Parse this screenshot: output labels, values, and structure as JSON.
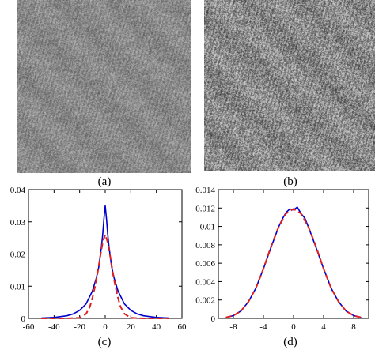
{
  "captions": {
    "a": "(a)",
    "b": "(b)",
    "c": "(c)",
    "d": "(d)"
  },
  "images": {
    "a": {
      "description_icon": "grayscale-noise-texture-fine",
      "base_color": "#8a8a8a"
    },
    "b": {
      "description_icon": "grayscale-noise-texture-coarse",
      "base_color": "#8c8c8c"
    }
  },
  "chart_data": [
    {
      "type": "line",
      "xlim": [
        -60,
        60
      ],
      "ylim": [
        0,
        0.04
      ],
      "xticks": [
        "-60",
        "-40",
        "-20",
        "0",
        "20",
        "40",
        "60"
      ],
      "yticks": [
        "0",
        "0.01",
        "0.02",
        "0.03",
        "0.04"
      ],
      "series": [
        {
          "color": "#0000cc",
          "style": "solid",
          "x": [
            -50,
            -40,
            -30,
            -25,
            -20,
            -15,
            -10,
            -7,
            -5,
            -3,
            -2,
            -1,
            0,
            1,
            2,
            3,
            5,
            7,
            10,
            15,
            20,
            25,
            30,
            40,
            50
          ],
          "y": [
            0.0001,
            0.0003,
            0.0008,
            0.0014,
            0.0025,
            0.0045,
            0.0085,
            0.0125,
            0.016,
            0.022,
            0.026,
            0.031,
            0.035,
            0.031,
            0.026,
            0.022,
            0.016,
            0.0125,
            0.0085,
            0.0045,
            0.0025,
            0.0014,
            0.0008,
            0.0003,
            0.0001
          ]
        },
        {
          "color": "#e02020",
          "style": "dashed",
          "x": [
            -50,
            -30,
            -20,
            -15,
            -12,
            -10,
            -8,
            -6,
            -4,
            -2,
            0,
            2,
            4,
            6,
            8,
            10,
            12,
            15,
            20,
            30,
            50
          ],
          "y": [
            0,
            0,
            0.0002,
            0.0014,
            0.0036,
            0.0063,
            0.0099,
            0.014,
            0.019,
            0.0236,
            0.026,
            0.0236,
            0.019,
            0.014,
            0.0099,
            0.0063,
            0.0036,
            0.0014,
            0.0002,
            0,
            0
          ]
        }
      ]
    },
    {
      "type": "line",
      "xlim": [
        -10,
        10
      ],
      "ylim": [
        0,
        0.014
      ],
      "xticks": [
        "-8",
        "-4",
        "0",
        "4",
        "8"
      ],
      "yticks": [
        "0",
        "0.002",
        "0.004",
        "0.006",
        "0.008",
        "0.01",
        "0.012",
        "0.014"
      ],
      "series": [
        {
          "color": "#0000cc",
          "style": "solid",
          "x": [
            -9,
            -8,
            -7,
            -6,
            -5,
            -4,
            -3,
            -2,
            -1.5,
            -1,
            -0.5,
            0,
            0.5,
            1,
            1.5,
            2,
            3,
            4,
            5,
            6,
            7,
            8,
            9
          ],
          "y": [
            0.0001,
            0.0003,
            0.0008,
            0.0018,
            0.0033,
            0.0054,
            0.0077,
            0.0099,
            0.0108,
            0.0115,
            0.0119,
            0.0118,
            0.0121,
            0.0114,
            0.0109,
            0.0099,
            0.0077,
            0.0054,
            0.0033,
            0.0018,
            0.0008,
            0.0003,
            0.0001
          ]
        },
        {
          "color": "#e02020",
          "style": "dashed",
          "x": [
            -9,
            -8,
            -7,
            -6,
            -5,
            -4,
            -3,
            -2,
            -1,
            0,
            1,
            2,
            3,
            4,
            5,
            6,
            7,
            8,
            9
          ],
          "y": [
            0.0001,
            0.0003,
            0.0008,
            0.0018,
            0.0033,
            0.0054,
            0.0078,
            0.0099,
            0.0114,
            0.0119,
            0.0114,
            0.0099,
            0.0078,
            0.0054,
            0.0033,
            0.0018,
            0.0008,
            0.0003,
            0.0001
          ]
        }
      ]
    }
  ]
}
